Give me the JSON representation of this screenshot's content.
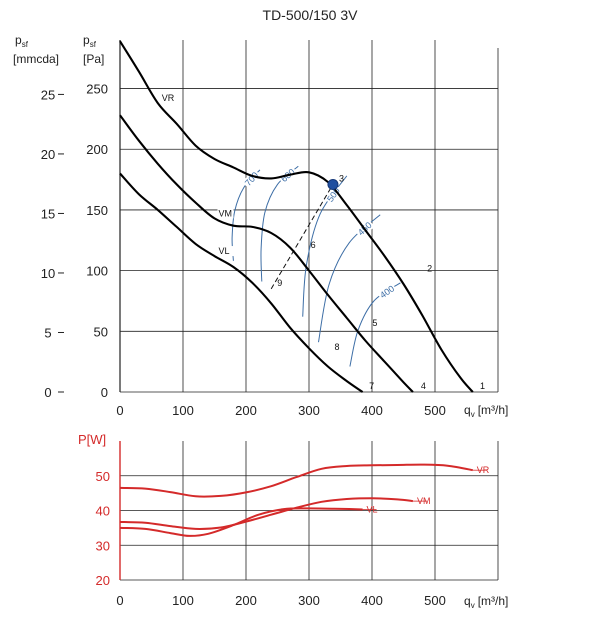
{
  "chart_data": [
    {
      "type": "line",
      "title": "TD-500/150 3V",
      "xlabel": "q",
      "xlabel_sub": "v",
      "xlabel_unit": "[m³/h]",
      "ylabel_left": "p",
      "ylabel_left_sub": "sf",
      "ylabel_left_unit": "[mmcda]",
      "ylabel_right": "p",
      "ylabel_right_sub": "sf",
      "ylabel_right_unit": "[Pa]",
      "xlim": [
        0,
        600
      ],
      "ylim": [
        0,
        290
      ],
      "xticks": [
        "0",
        "100",
        "200",
        "300",
        "400",
        "500"
      ],
      "yticks_pa": [
        0,
        50,
        100,
        150,
        200,
        250
      ],
      "yticks_mmcda": [
        0,
        5,
        10,
        15,
        20,
        25
      ],
      "grid": true,
      "series": [
        {
          "name": "VR",
          "color": "#000000",
          "x": [
            0,
            30,
            60,
            90,
            120,
            150,
            180,
            210,
            240,
            270,
            300,
            330,
            360,
            390,
            420,
            450,
            480,
            510,
            540,
            560
          ],
          "y": [
            289,
            264,
            238,
            221,
            203,
            192,
            185,
            178,
            176,
            179,
            181,
            173,
            154,
            133,
            112,
            89,
            63,
            35,
            12,
            0
          ]
        },
        {
          "name": "VM",
          "color": "#000000",
          "x": [
            0,
            30,
            60,
            90,
            120,
            150,
            180,
            210,
            240,
            270,
            300,
            330,
            360,
            390,
            420,
            450,
            465
          ],
          "y": [
            228,
            207,
            188,
            171,
            156,
            143,
            137,
            136,
            131,
            119,
            100,
            80,
            61,
            42,
            25,
            8,
            0
          ]
        },
        {
          "name": "VL",
          "color": "#000000",
          "x": [
            0,
            30,
            60,
            90,
            120,
            150,
            180,
            210,
            240,
            270,
            300,
            330,
            360,
            385
          ],
          "y": [
            180,
            163,
            150,
            136,
            122,
            112,
            103,
            90,
            73,
            53,
            36,
            21,
            9,
            0
          ]
        }
      ],
      "iso_curves": [
        {
          "label": "700",
          "color": "#3d6ea6",
          "x": [
            180,
            178,
            182,
            196,
            222
          ],
          "y": [
            108,
            127,
            149,
            168,
            183
          ]
        },
        {
          "label": "600",
          "color": "#3d6ea6",
          "x": [
            225,
            224,
            230,
            250,
            283
          ],
          "y": [
            91,
            118,
            148,
            171,
            186
          ]
        },
        {
          "label": "500",
          "color": "#3d6ea6",
          "x": [
            290,
            296,
            318,
            360
          ],
          "y": [
            62,
            105,
            147,
            178
          ]
        },
        {
          "label": "450",
          "color": "#3d6ea6",
          "x": [
            315,
            332,
            364,
            413
          ],
          "y": [
            41,
            89,
            123,
            146
          ]
        },
        {
          "label": "400",
          "color": "#3d6ea6",
          "x": [
            365,
            378,
            403,
            445
          ],
          "y": [
            21,
            51,
            75,
            90
          ]
        }
      ],
      "points": [
        {
          "label": "1",
          "x": 562,
          "y": 0
        },
        {
          "label": "2",
          "x": 478,
          "y": 97
        },
        {
          "label": "3",
          "x": 338,
          "y": 171
        },
        {
          "label": "4",
          "x": 468,
          "y": 0
        },
        {
          "label": "5",
          "x": 391,
          "y": 52
        },
        {
          "label": "6",
          "x": 293,
          "y": 116
        },
        {
          "label": "7",
          "x": 386,
          "y": 0
        },
        {
          "label": "8",
          "x": 331,
          "y": 32
        },
        {
          "label": "9",
          "x": 240,
          "y": 85
        }
      ],
      "system_line": {
        "from_point": "9",
        "to_point": "3"
      }
    },
    {
      "type": "line",
      "ylabel": "P[W]",
      "xlabel": "q",
      "xlabel_sub": "v",
      "xlabel_unit": "[m³/h]",
      "xlim": [
        0,
        600
      ],
      "ylim": [
        20,
        60
      ],
      "xticks": [
        "0",
        "100",
        "200",
        "300",
        "400",
        "500"
      ],
      "yticks": [
        20,
        30,
        40,
        50
      ],
      "grid": true,
      "series": [
        {
          "name": "VR",
          "color": "#d42a2a",
          "x": [
            0,
            40,
            80,
            120,
            160,
            200,
            240,
            280,
            320,
            360,
            400,
            440,
            480,
            520,
            560
          ],
          "y": [
            46.5,
            46.3,
            45.3,
            44.1,
            44.2,
            45.2,
            47.0,
            49.6,
            52.0,
            52.8,
            53.0,
            53.1,
            53.2,
            52.9,
            51.6
          ]
        },
        {
          "name": "VM",
          "color": "#d42a2a",
          "x": [
            0,
            40,
            80,
            120,
            160,
            200,
            240,
            280,
            320,
            360,
            400,
            440,
            465
          ],
          "y": [
            36.7,
            36.5,
            35.5,
            34.7,
            35.1,
            36.8,
            38.8,
            40.8,
            42.5,
            43.3,
            43.5,
            43.2,
            42.7
          ]
        },
        {
          "name": "VL",
          "color": "#d42a2a",
          "x": [
            0,
            40,
            80,
            110,
            140,
            180,
            220,
            260,
            300,
            340,
            385
          ],
          "y": [
            35.0,
            34.7,
            33.5,
            32.7,
            33.3,
            35.8,
            38.8,
            40.4,
            40.6,
            40.5,
            40.3
          ]
        }
      ]
    }
  ]
}
